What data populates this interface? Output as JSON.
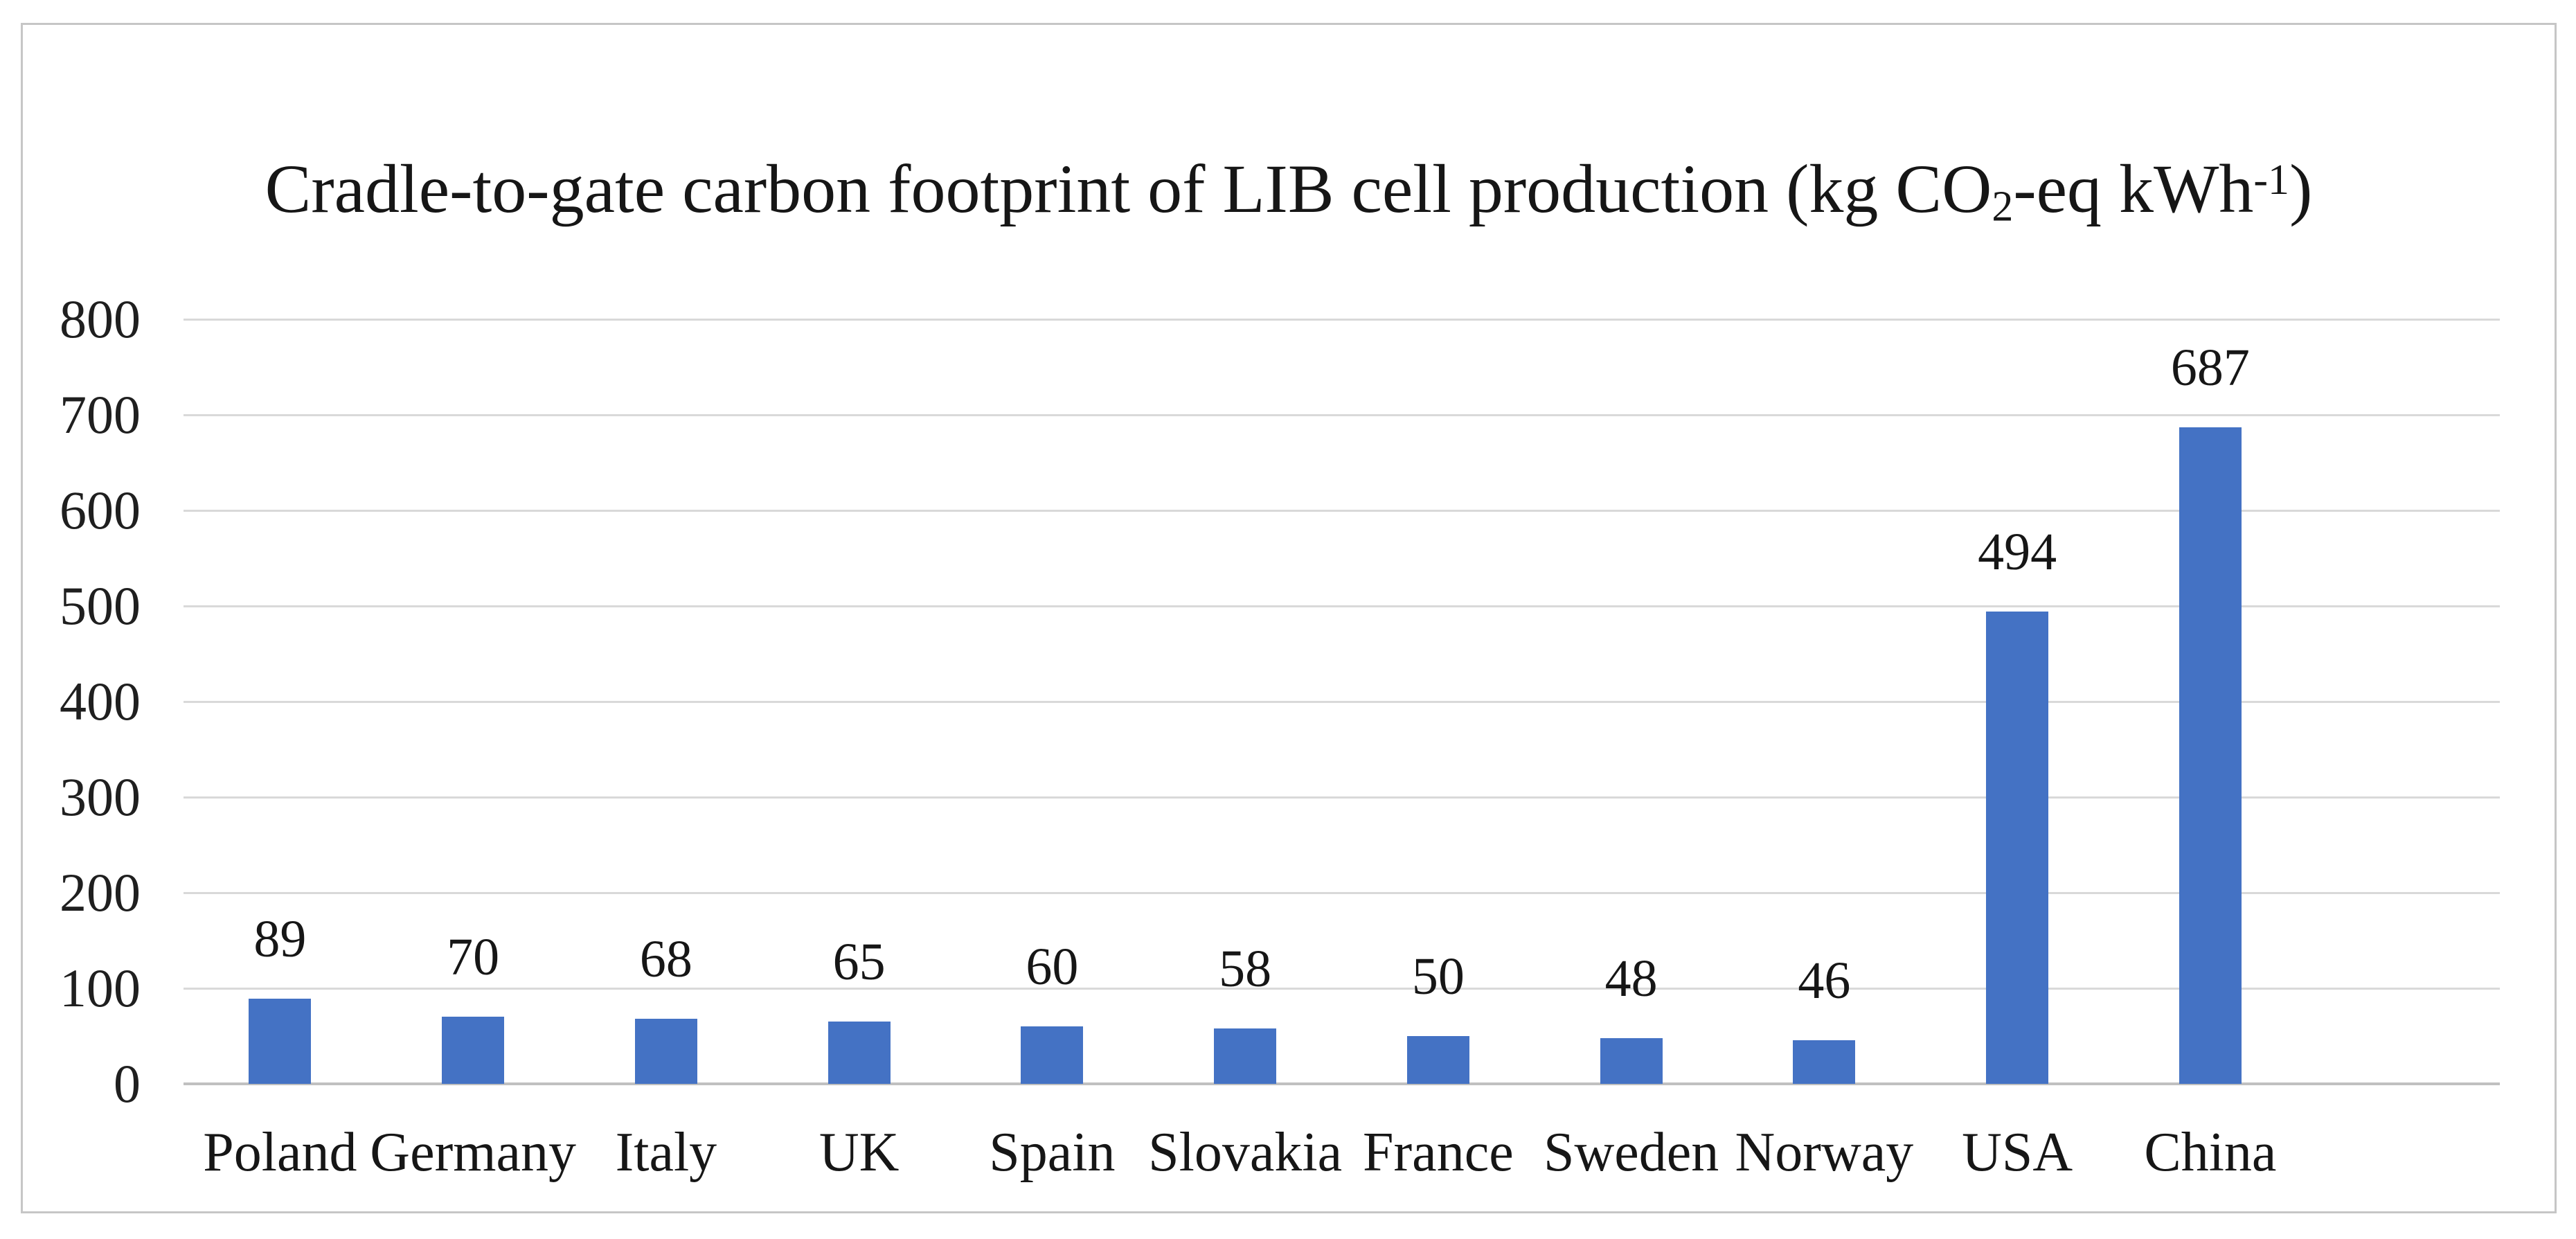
{
  "page": {
    "background_color": "#ffffff",
    "frame_border_color": "#c6c6c6"
  },
  "chart_data": {
    "type": "bar",
    "title": "Cradle-to-gate carbon footprint of LIB cell production (kg CO2-eq kWh-1)",
    "title_segments": [
      {
        "t": "Cradle-to-gate carbon footprint of LIB cell production (kg CO"
      },
      {
        "t": "2",
        "style": "sub"
      },
      {
        "t": "-eq kWh"
      },
      {
        "t": "-1",
        "style": "sup"
      },
      {
        "t": ")"
      }
    ],
    "categories": [
      "Poland",
      "Germany",
      "Italy",
      "UK",
      "Spain",
      "Slovakia",
      "France",
      "Sweden",
      "Norway",
      "USA",
      "China"
    ],
    "values": [
      89,
      70,
      68,
      65,
      60,
      58,
      50,
      48,
      46,
      494,
      687
    ],
    "data_labels_shown": true,
    "xlabel": "",
    "ylabel": "",
    "ylim": [
      0,
      800
    ],
    "yticks": [
      0,
      100,
      200,
      300,
      400,
      500,
      600,
      700,
      800
    ],
    "grid": true,
    "legend": "none",
    "bar_color": "#4472c4",
    "gridline_color": "#d9d9d9",
    "baseline_color": "#c0c0c0",
    "text_color": "#1f1f1f"
  }
}
